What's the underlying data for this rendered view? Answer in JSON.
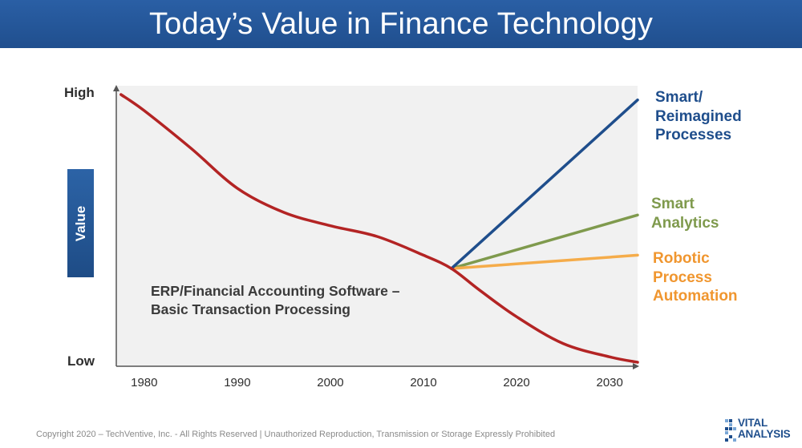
{
  "header": {
    "title": "Today’s Value in Finance Technology"
  },
  "chart_data": {
    "type": "line",
    "title": "Today’s Value in Finance Technology",
    "xlabel": "",
    "ylabel": "Value",
    "x_ticks": [
      1980,
      1990,
      2000,
      2010,
      2020,
      2030
    ],
    "xlim": [
      1977,
      2033
    ],
    "ylim": [
      0,
      100
    ],
    "y_tick_labels": {
      "top": "High",
      "bottom": "Low"
    },
    "series": [
      {
        "name": "ERP/Financial Accounting Software – Basic Transaction Processing",
        "color": "#b32424",
        "x": [
          1977.5,
          1980,
          1985,
          1990,
          1995,
          2000,
          2005,
          2010,
          2013,
          2016,
          2020,
          2025,
          2030,
          2033
        ],
        "y": [
          100,
          94,
          80,
          65,
          56,
          51,
          47,
          40,
          35,
          27,
          17,
          7,
          2,
          0
        ]
      },
      {
        "name": "Smart/ Reimagined Processes",
        "color": "#1f4e8c",
        "x": [
          2013,
          2033
        ],
        "y": [
          35,
          98
        ]
      },
      {
        "name": "Smart Analytics",
        "color": "#7f9a4d",
        "x": [
          2013,
          2033
        ],
        "y": [
          35,
          55
        ]
      },
      {
        "name": "Robotic Process Automation",
        "color": "#f5ac4a",
        "x": [
          2013,
          2033
        ],
        "y": [
          35,
          40
        ]
      }
    ]
  },
  "axis": {
    "high_label": "High",
    "low_label": "Low",
    "value_label": "Value"
  },
  "labels": {
    "smart_reimagined": [
      "Smart/",
      "Reimagined",
      "Processes"
    ],
    "smart_analytics": [
      "Smart",
      "Analytics"
    ],
    "rpa": [
      "Robotic",
      "Process",
      "Automation"
    ]
  },
  "annotation": {
    "line1": "ERP/Financial Accounting Software –",
    "line2": "Basic Transaction Processing"
  },
  "footer": {
    "copyright": "Copyright 2020 – TechVentive, Inc. - All Rights Reserved | Unauthorized Reproduction, Transmission or Storage Expressly Prohibited"
  },
  "logo": {
    "line1": "VITAL",
    "line2": "ANALYSIS"
  },
  "colors": {
    "header_bg": "#2a5fa5",
    "erp": "#b32424",
    "smart": "#1f4e8c",
    "analytics": "#7f9a4d",
    "rpa": "#f5ac4a",
    "plot_bg": "#f1f1f1"
  }
}
